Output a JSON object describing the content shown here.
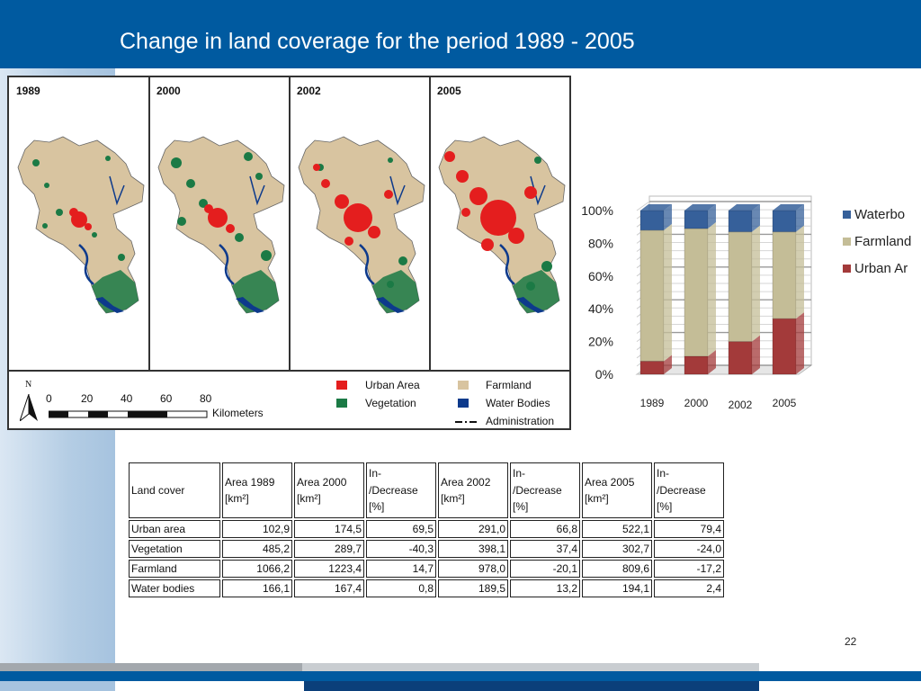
{
  "slide": {
    "title": "Change in land coverage for the period 1989 - 2005",
    "page_number": "22",
    "colors": {
      "header_blue": "#005aa0",
      "urban": "#e41e1e",
      "farmland": "#d8c4a0",
      "vegetation": "#1b7a45",
      "water": "#0d3a8c"
    }
  },
  "maps": {
    "years": [
      "1989",
      "2000",
      "2002",
      "2005"
    ],
    "legend": {
      "urban": "Urban Area",
      "farmland": "Farmland",
      "vegetation": "Vegetation",
      "water": "Water Bodies",
      "admin": "Administration"
    },
    "north": "N",
    "scale": {
      "ticks": [
        "0",
        "20",
        "40",
        "60",
        "80"
      ],
      "unit": "Kilometers"
    }
  },
  "chart_data": {
    "type": "bar",
    "stacked": "percent",
    "categories": [
      "1989",
      "2000",
      "2002",
      "2005"
    ],
    "series": [
      {
        "name": "Urban Area",
        "color": "#a33a3a",
        "values": [
          8,
          11,
          20,
          34
        ]
      },
      {
        "name": "Farmland",
        "color": "#c4bd97",
        "values": [
          80,
          78,
          67,
          53
        ]
      },
      {
        "name": "Waterbodies",
        "color": "#36609a",
        "values": [
          12,
          11,
          13,
          13
        ]
      }
    ],
    "legend_display": [
      "Waterbo",
      "Farmland",
      "Urban Ar"
    ],
    "y_ticks": [
      "0%",
      "20%",
      "40%",
      "60%",
      "80%",
      "100%"
    ],
    "ylim": [
      0,
      100
    ],
    "grid": true,
    "legend_position": "right"
  },
  "table": {
    "headers": [
      [
        "Land cover"
      ],
      [
        "Area 1989",
        "[km²]"
      ],
      [
        "Area 2000",
        "[km²]"
      ],
      [
        "In-",
        "/Decrease",
        "[%]"
      ],
      [
        "Area 2002",
        "[km²]"
      ],
      [
        "In-",
        "/Decrease",
        "[%]"
      ],
      [
        "Area 2005",
        "[km²]"
      ],
      [
        "In-",
        "/Decrease",
        "[%]"
      ]
    ],
    "rows": [
      [
        "Urban area",
        "102,9",
        "174,5",
        "69,5",
        "291,0",
        "66,8",
        "522,1",
        "79,4"
      ],
      [
        "Vegetation",
        "485,2",
        "289,7",
        "-40,3",
        "398,1",
        "37,4",
        "302,7",
        "-24,0"
      ],
      [
        "Farmland",
        "1066,2",
        "1223,4",
        "14,7",
        "978,0",
        "-20,1",
        "809,6",
        "-17,2"
      ],
      [
        "Water bodies",
        "166,1",
        "167,4",
        "0,8",
        "189,5",
        "13,2",
        "194,1",
        "2,4"
      ]
    ]
  }
}
